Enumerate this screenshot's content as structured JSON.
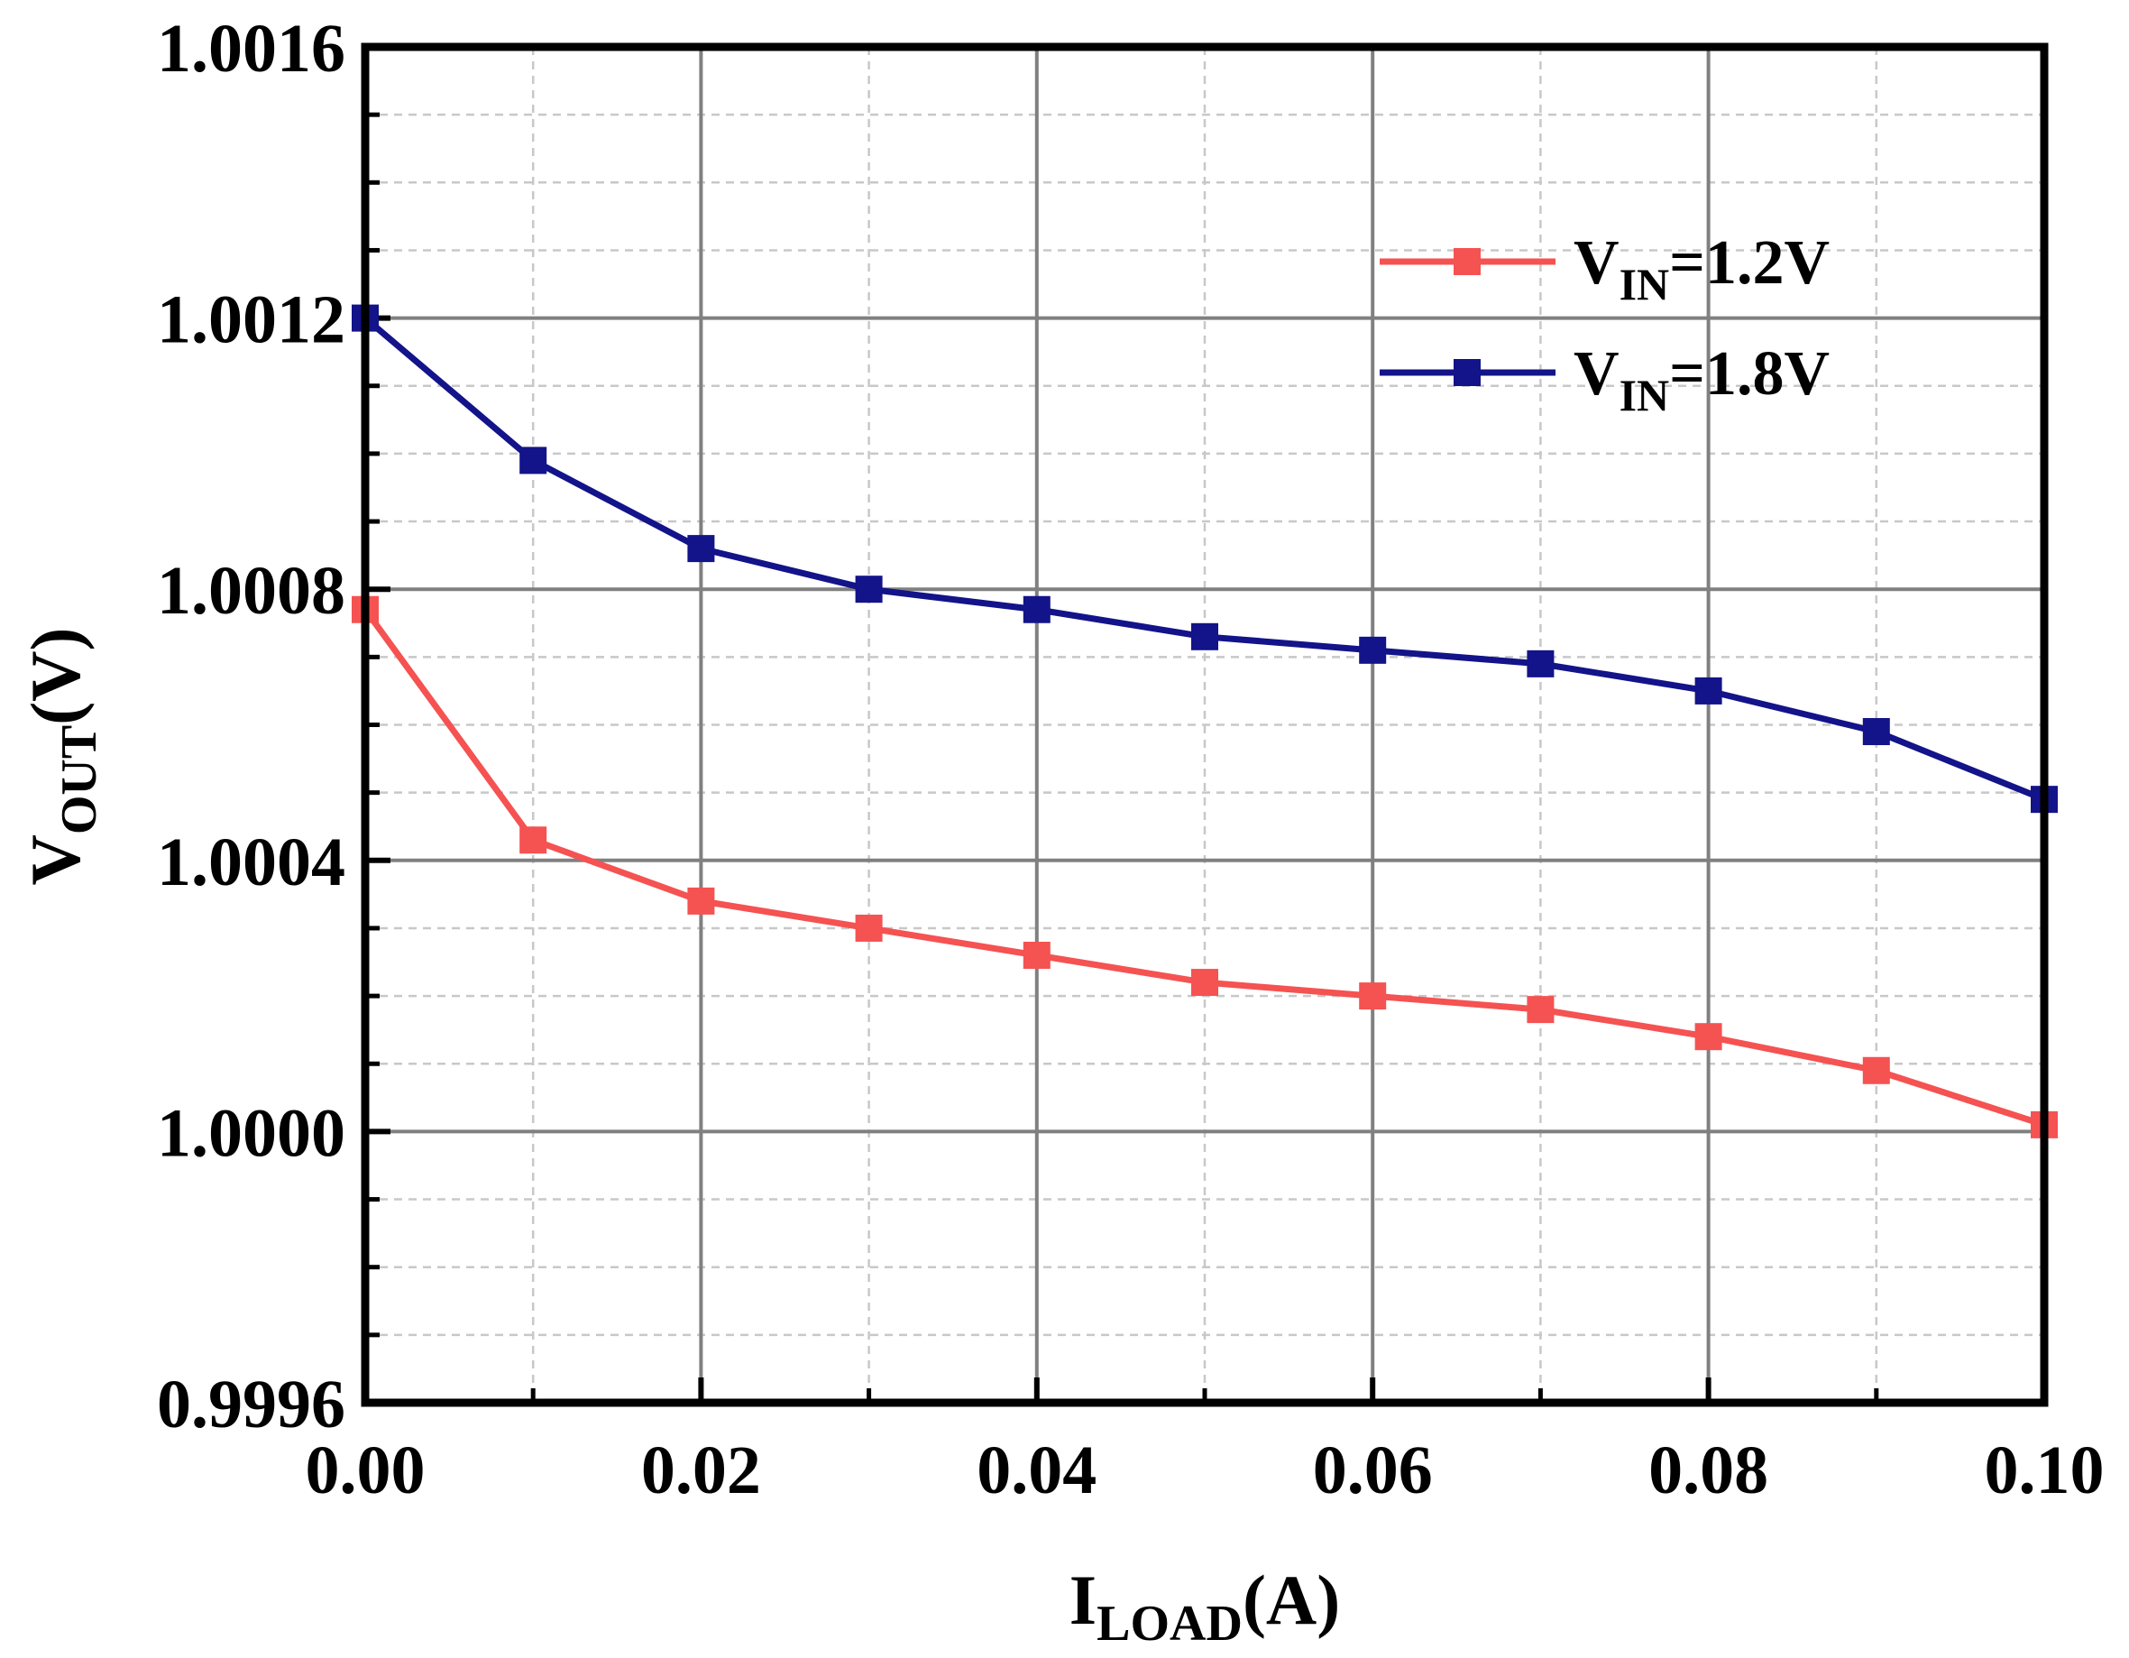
{
  "chart_data": {
    "type": "line",
    "title": "",
    "xlabel": {
      "main": "I",
      "sub": "LOAD",
      "tail": "(A)"
    },
    "ylabel": {
      "main": "V",
      "sub": "OUT",
      "tail": "(V)"
    },
    "xlim": [
      0,
      0.1
    ],
    "ylim": [
      0.9996,
      1.0016
    ],
    "x_ticks": [
      0,
      0.02,
      0.04,
      0.06,
      0.08,
      0.1
    ],
    "x_tick_labels": [
      "0.00",
      "0.02",
      "0.04",
      "0.06",
      "0.08",
      "0.10"
    ],
    "x_minor_ticks": [
      0.01,
      0.03,
      0.05,
      0.07,
      0.09
    ],
    "y_ticks": [
      0.9996,
      1.0,
      1.0004,
      1.0008,
      1.0012,
      1.0016
    ],
    "y_tick_labels": [
      "0.9996",
      "1.0000",
      "1.0004",
      "1.0008",
      "1.0012",
      "1.0016"
    ],
    "y_minor_ticks": [
      0.9997,
      0.9998,
      0.9999,
      1.0001,
      1.0002,
      1.0003,
      1.0005,
      1.0006,
      1.0007,
      1.0009,
      1.001,
      1.0011,
      1.0013,
      1.0014,
      1.0015
    ],
    "grid": true,
    "legend_position": "top-right",
    "x": [
      0,
      0.01,
      0.02,
      0.03,
      0.04,
      0.05,
      0.06,
      0.07,
      0.08,
      0.09,
      0.1
    ],
    "series": [
      {
        "name": "VIN=1.2V",
        "label_main": "V",
        "label_sub": "IN",
        "label_tail": "=1.2V",
        "color": "#f55252",
        "values": [
          1.00077,
          1.00043,
          1.00034,
          1.0003,
          1.00026,
          1.00022,
          1.0002,
          1.00018,
          1.00014,
          1.00009,
          1.00001
        ]
      },
      {
        "name": "VIN=1.8V",
        "label_main": "V",
        "label_sub": "IN",
        "label_tail": "=1.8V",
        "color": "#13138a",
        "values": [
          1.0012,
          1.00099,
          1.00086,
          1.0008,
          1.00077,
          1.00073,
          1.00071,
          1.00069,
          1.00065,
          1.00059,
          1.00049
        ]
      }
    ]
  }
}
